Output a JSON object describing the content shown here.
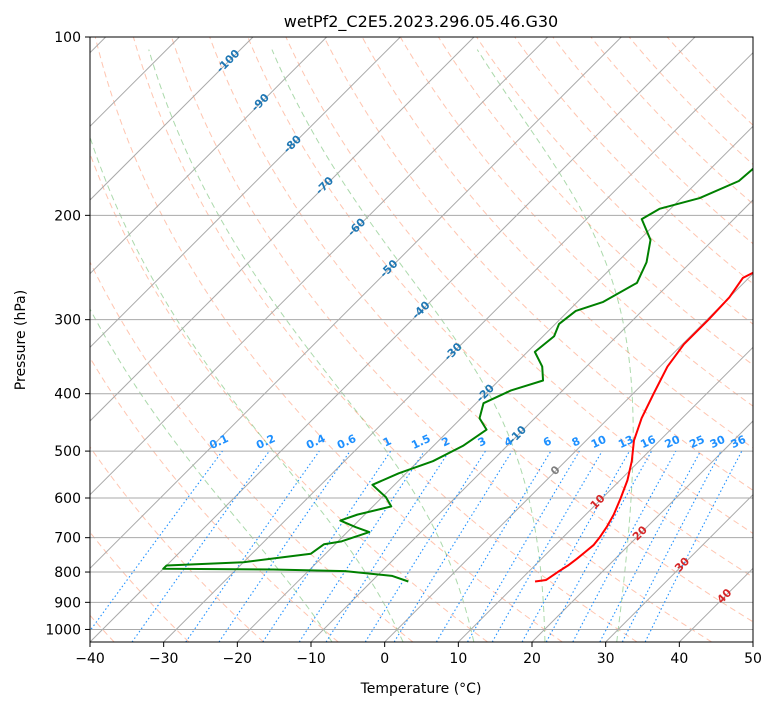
{
  "chart_data": {
    "type": "line",
    "subtype": "skew-T log-P diagram",
    "title": "wetPf2_C2E5.2023.296.05.46.G30",
    "xlabel": "Temperature (°C)",
    "ylabel": "Pressure (hPa)",
    "xlim": [
      -40,
      50
    ],
    "ylim": [
      1050,
      100
    ],
    "y_scale": "log",
    "grid": true,
    "x_ticks": [
      -40,
      -30,
      -20,
      -10,
      0,
      10,
      20,
      30,
      40,
      50
    ],
    "y_ticks": [
      100,
      200,
      300,
      400,
      500,
      600,
      700,
      800,
      900,
      1000
    ],
    "series": [
      {
        "role": "temperature",
        "color": "#ff0000",
        "points": [
          [
            12.2,
            830
          ],
          [
            13.5,
            825
          ],
          [
            14.0,
            800
          ],
          [
            14.5,
            780
          ],
          [
            14.8,
            760
          ],
          [
            15.0,
            740
          ],
          [
            15.2,
            720
          ],
          [
            15.0,
            700
          ],
          [
            14.5,
            670
          ],
          [
            13.8,
            640
          ],
          [
            12.5,
            600
          ],
          [
            11.0,
            560
          ],
          [
            9.0,
            520
          ],
          [
            6.5,
            480
          ],
          [
            4.5,
            440
          ],
          [
            2.8,
            400
          ],
          [
            1.0,
            360
          ],
          [
            0.2,
            330
          ],
          [
            0.2,
            300
          ],
          [
            0.0,
            275
          ],
          [
            -0.8,
            255
          ],
          [
            1.0,
            242
          ],
          [
            4.0,
            230
          ],
          [
            7.0,
            216
          ],
          [
            9.0,
            203
          ],
          [
            10.0,
            190
          ],
          [
            11.0,
            175
          ],
          [
            12.0,
            160
          ],
          [
            14.0,
            145
          ],
          [
            16.5,
            130
          ],
          [
            19.0,
            120
          ],
          [
            20.0,
            113
          ],
          [
            21.0,
            106
          ],
          [
            22.5,
            100
          ]
        ]
      },
      {
        "role": "dewpoint",
        "color": "#008000",
        "points": [
          [
            -5.0,
            830
          ],
          [
            -8.0,
            812
          ],
          [
            -15.0,
            797
          ],
          [
            -25.0,
            792
          ],
          [
            -40.0,
            790
          ],
          [
            -40.0,
            780
          ],
          [
            -30.0,
            770
          ],
          [
            -22.0,
            745
          ],
          [
            -21.5,
            718
          ],
          [
            -19.5,
            710
          ],
          [
            -17.0,
            685
          ],
          [
            -19.5,
            672
          ],
          [
            -22.5,
            655
          ],
          [
            -21.0,
            640
          ],
          [
            -17.5,
            620
          ],
          [
            -19.5,
            598
          ],
          [
            -23.0,
            570
          ],
          [
            -21.0,
            545
          ],
          [
            -18.0,
            520
          ],
          [
            -16.0,
            490
          ],
          [
            -15.0,
            460
          ],
          [
            -17.5,
            440
          ],
          [
            -19.0,
            415
          ],
          [
            -17.0,
            395
          ],
          [
            -14.0,
            380
          ],
          [
            -16.0,
            360
          ],
          [
            -19.0,
            340
          ],
          [
            -18.5,
            320
          ],
          [
            -19.5,
            305
          ],
          [
            -19.0,
            290
          ],
          [
            -16.5,
            280
          ],
          [
            -14.5,
            260
          ],
          [
            -16.0,
            240
          ],
          [
            -18.5,
            220
          ],
          [
            -22.5,
            203
          ],
          [
            -21.5,
            195
          ],
          [
            -17.5,
            187
          ],
          [
            -14.5,
            175
          ],
          [
            -14.0,
            160
          ],
          [
            -12.0,
            145
          ],
          [
            -9.0,
            130
          ],
          [
            -7.0,
            120
          ],
          [
            -6.0,
            110
          ],
          [
            -3.5,
            100
          ]
        ]
      }
    ],
    "dry_adiabats": [
      -40,
      -30,
      -20,
      -10,
      0,
      10,
      20,
      30,
      40,
      50,
      60,
      70,
      80,
      90,
      100,
      110,
      120,
      130,
      140,
      150,
      160,
      170
    ],
    "moist_adiabats": [
      -10,
      0,
      10,
      20,
      30
    ],
    "isotherm_labels": [
      "-100",
      "-90",
      "-80",
      "-70",
      "-60",
      "-50",
      "-40",
      "-30",
      "-20",
      "-10",
      "0",
      "10",
      "20",
      "30",
      "40"
    ],
    "mixing_ratio_labels": [
      "0.1",
      "0.2",
      "0.4",
      "0.6",
      "1",
      "1.5",
      "2",
      "3",
      "4",
      "6",
      "8",
      "10",
      "13",
      "16",
      "20",
      "25",
      "30",
      "36"
    ],
    "colors": {
      "temperature": "#ff0000",
      "dewpoint": "#008000",
      "isotherm_cold": "#1f77b4",
      "isotherm_warm": "#d62728",
      "isotherm_zero": "#808080",
      "mixing_ratio": "#1e90ff",
      "dry_adiabat": "#ff7f50",
      "moist_adiabat": "#2ca02c",
      "grid": "#aaaaaa"
    }
  }
}
